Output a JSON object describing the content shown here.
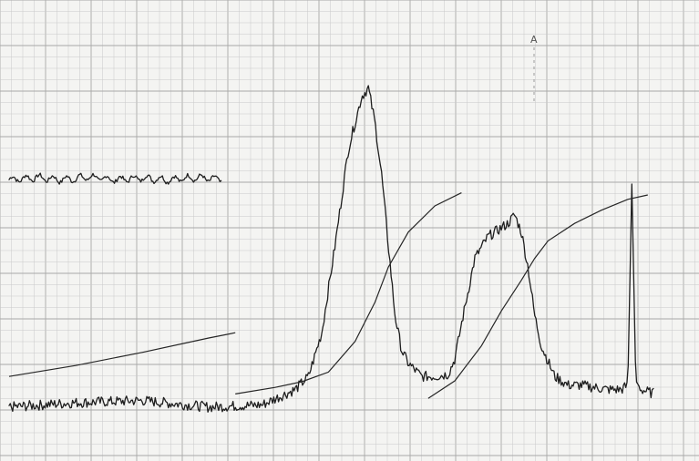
{
  "chart_data": {
    "type": "line",
    "title": "",
    "xlabel": "",
    "ylabel": "",
    "xlim": [
      0,
      100
    ],
    "ylim": [
      0,
      100
    ],
    "grid": true,
    "marker_label": "A",
    "series": [
      {
        "role": "reference-noise-trace",
        "x": [
          0,
          4,
          8,
          12,
          16,
          20,
          24,
          28,
          32
        ],
        "y": [
          61,
          61.5,
          61,
          61.6,
          61,
          61.4,
          61,
          61.5,
          61
        ]
      },
      {
        "role": "spectrum",
        "x": [
          0,
          10,
          20,
          30,
          38,
          43,
          45,
          47,
          49,
          51,
          53,
          54,
          55,
          56,
          57,
          58,
          59,
          60,
          62,
          64,
          66,
          67,
          68,
          70,
          72,
          74,
          75,
          76,
          77,
          78,
          79,
          80,
          82,
          84,
          86,
          88,
          90,
          92,
          93,
          93.6,
          94.2,
          95,
          96,
          97
        ],
        "y": [
          9,
          10,
          10.5,
          9,
          9.5,
          13,
          16,
          26,
          46,
          68,
          80,
          82,
          74,
          62,
          46,
          30,
          22,
          19,
          16,
          16,
          16.5,
          20,
          28,
          43,
          48,
          50,
          51,
          53,
          49,
          41,
          30,
          23,
          16,
          14,
          14,
          13.5,
          13,
          13,
          14,
          60,
          15,
          13,
          12.5,
          12
        ]
      },
      {
        "role": "integral-1",
        "x": [
          0,
          10,
          20,
          30,
          34
        ],
        "y": [
          16,
          18.5,
          21.5,
          24.8,
          26
        ]
      },
      {
        "role": "integral-2",
        "x": [
          34,
          40,
          44,
          48,
          52,
          55,
          57,
          60,
          64,
          68
        ],
        "y": [
          12,
          13.5,
          14.8,
          17,
          24,
          33,
          41,
          49,
          55,
          58
        ]
      },
      {
        "role": "integral-3",
        "x": [
          63,
          67,
          71,
          74,
          77,
          79,
          81,
          85,
          89,
          93,
          96
        ],
        "y": [
          11,
          15,
          23,
          31,
          38,
          43,
          47,
          51,
          54,
          56.5,
          57.5
        ]
      }
    ]
  }
}
